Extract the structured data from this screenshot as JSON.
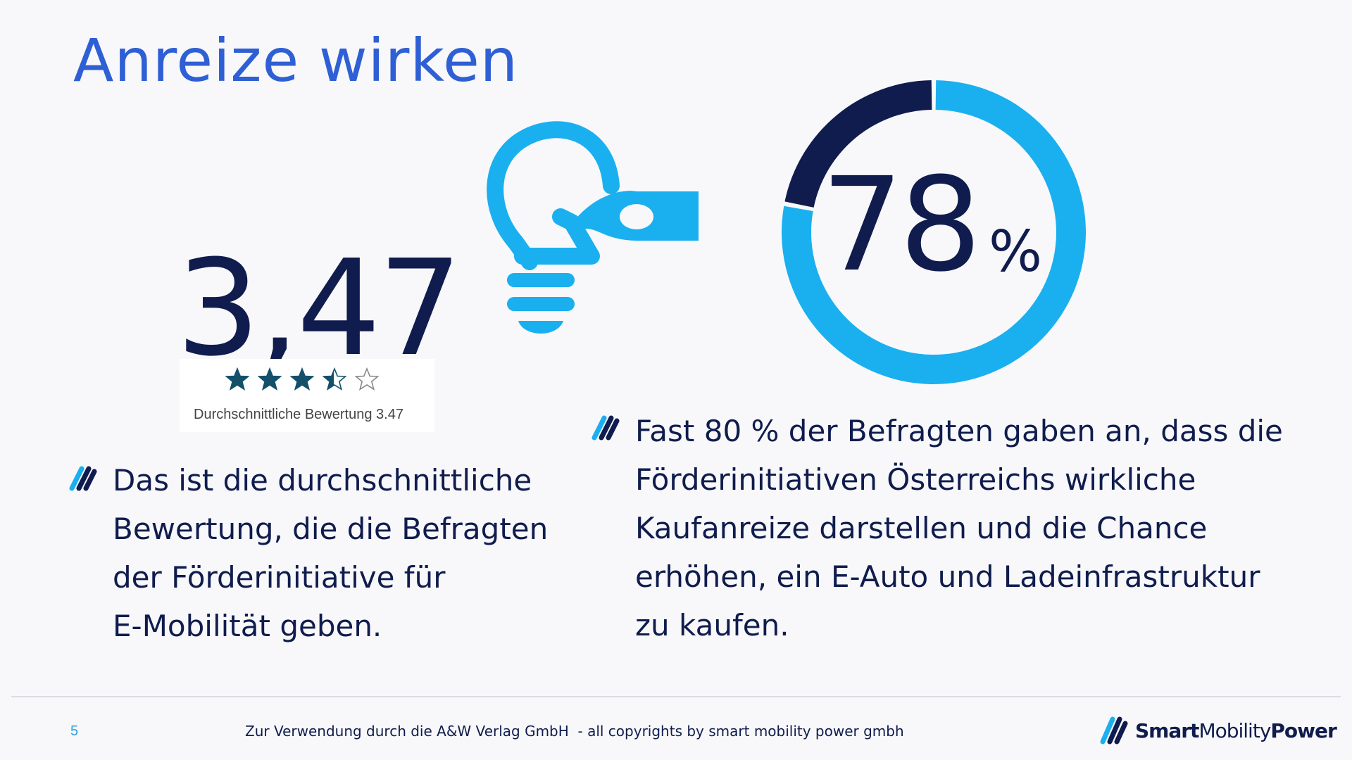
{
  "title": "Anreize wirken",
  "rating": {
    "big_value": "3,47",
    "stars_total": 5,
    "stars_value": 3.47,
    "caption": "Durchschnittliche Bewertung 3.47"
  },
  "donut": {
    "value_text": "78",
    "unit": "%",
    "percent": 78
  },
  "left_bullet": {
    "lines": [
      "Das ist die durchschnittliche",
      "Bewertung, die die Befragten",
      "der Förderinitiative für",
      "E-Mobilität geben."
    ]
  },
  "right_bullet": {
    "lines": [
      "Fast 80 % der Befragten gaben an, dass die",
      "Förderinitiativen Österreichs wirkliche",
      "Kaufanreize darstellen und die Chance",
      "erhöhen, ein E-Auto und Ladeinfrastruktur",
      "zu kaufen."
    ]
  },
  "footer": {
    "page_number": "5",
    "note": "Zur Verwendung durch die A&W Verlag GmbH  - all copyrights by smart mobility power gmbh",
    "brand_part1": "Smart",
    "brand_part2": "Mobility",
    "brand_part3": "Power"
  },
  "colors": {
    "title_blue": "#2f5fd4",
    "navy": "#0f1c4d",
    "sky_blue": "#1ab0ef",
    "star_teal": "#14506a",
    "footer_blue": "#2aa0e0"
  },
  "icons": {
    "bulb": "lightbulb-with-plug-icon",
    "bullet": "slash-marks-bullet-icon",
    "brand": "smart-mobility-power-logo-mark"
  }
}
